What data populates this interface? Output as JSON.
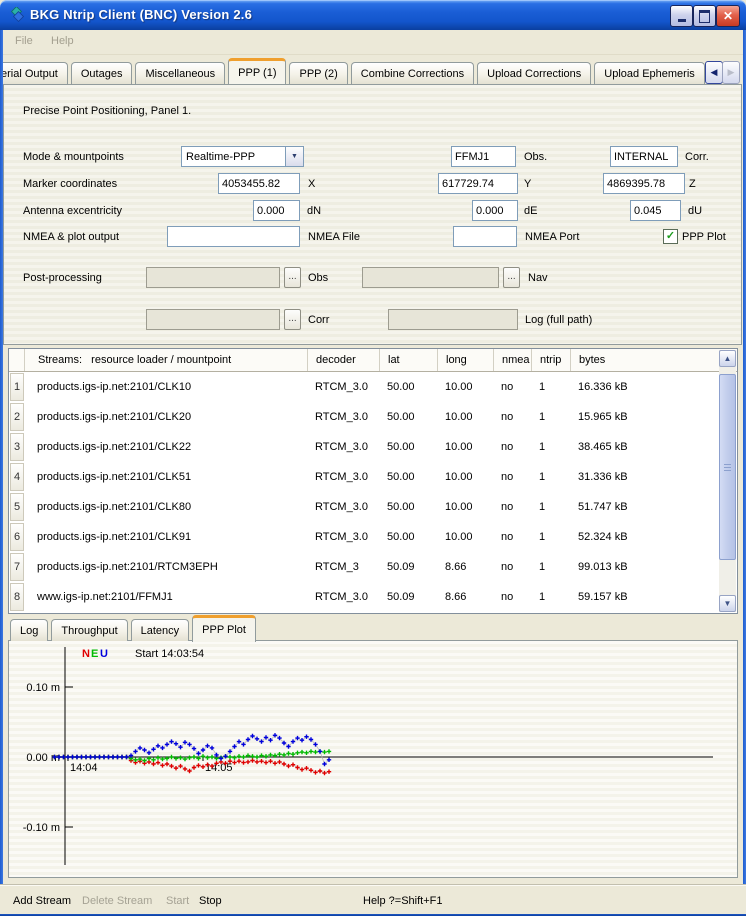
{
  "window": {
    "title": "BKG Ntrip Client (BNC) Version 2.6"
  },
  "menu": {
    "items": [
      "File",
      "Help"
    ]
  },
  "top_tabs": {
    "items": [
      "erial Output",
      "Outages",
      "Miscellaneous",
      "PPP (1)",
      "PPP (2)",
      "Combine Corrections",
      "Upload Corrections",
      "Upload Ephemeris"
    ],
    "active": "PPP (1)"
  },
  "tab_scroll": {
    "left_enabled": true,
    "right_enabled": false
  },
  "ppp_panel": {
    "heading": "Precise Point Positioning, Panel 1.",
    "mode_row": {
      "label": "Mode & mountpoints",
      "mode": "Realtime-PPP",
      "obs": "FFMJ1",
      "obs_label": "Obs.",
      "corr": "INTERNAL",
      "corr_label": "Corr."
    },
    "marker_row": {
      "label": "Marker coordinates",
      "x": "4053455.82",
      "x_label": "X",
      "y": "617729.74",
      "y_label": "Y",
      "z": "4869395.78",
      "z_label": "Z"
    },
    "antenna_row": {
      "label": "Antenna excentricity",
      "dn": "0.000",
      "dn_label": "dN",
      "de": "0.000",
      "de_label": "dE",
      "du": "0.045",
      "du_label": "dU"
    },
    "nmea_row": {
      "label": "NMEA & plot output",
      "file": "",
      "file_label": "NMEA File",
      "port": "",
      "port_label": "NMEA Port",
      "ppp_plot_label": "PPP Plot",
      "ppp_plot_checked": true
    },
    "post_row": {
      "label": "Post-processing",
      "browse": "...",
      "obs_label": "Obs",
      "nav_label": "Nav"
    },
    "log_row": {
      "browse": "...",
      "corr_label": "Corr",
      "log_label": "Log (full path)"
    }
  },
  "streams_table": {
    "headers": [
      "Streams:   resource loader / mountpoint",
      "decoder",
      "lat",
      "long",
      "nmea",
      "ntrip",
      "bytes"
    ],
    "rows": [
      {
        "num": "1",
        "mountpoint": "products.igs-ip.net:2101/CLK10",
        "decoder": "RTCM_3.0",
        "lat": "50.00",
        "long": "10.00",
        "nmea": "no",
        "ntrip": "1",
        "bytes": "16.336 kB"
      },
      {
        "num": "2",
        "mountpoint": "products.igs-ip.net:2101/CLK20",
        "decoder": "RTCM_3.0",
        "lat": "50.00",
        "long": "10.00",
        "nmea": "no",
        "ntrip": "1",
        "bytes": "15.965 kB"
      },
      {
        "num": "3",
        "mountpoint": "products.igs-ip.net:2101/CLK22",
        "decoder": "RTCM_3.0",
        "lat": "50.00",
        "long": "10.00",
        "nmea": "no",
        "ntrip": "1",
        "bytes": "38.465 kB"
      },
      {
        "num": "4",
        "mountpoint": "products.igs-ip.net:2101/CLK51",
        "decoder": "RTCM_3.0",
        "lat": "50.00",
        "long": "10.00",
        "nmea": "no",
        "ntrip": "1",
        "bytes": "31.336 kB"
      },
      {
        "num": "5",
        "mountpoint": "products.igs-ip.net:2101/CLK80",
        "decoder": "RTCM_3.0",
        "lat": "50.00",
        "long": "10.00",
        "nmea": "no",
        "ntrip": "1",
        "bytes": "51.747 kB"
      },
      {
        "num": "6",
        "mountpoint": "products.igs-ip.net:2101/CLK91",
        "decoder": "RTCM_3.0",
        "lat": "50.00",
        "long": "10.00",
        "nmea": "no",
        "ntrip": "1",
        "bytes": "52.324 kB"
      },
      {
        "num": "7",
        "mountpoint": "products.igs-ip.net:2101/RTCM3EPH",
        "decoder": "RTCM_3",
        "lat": "50.09",
        "long": "8.66",
        "nmea": "no",
        "ntrip": "1",
        "bytes": "99.013 kB"
      },
      {
        "num": "8",
        "mountpoint": "www.igs-ip.net:2101/FFMJ1",
        "decoder": "RTCM_3.0",
        "lat": "50.09",
        "long": "8.66",
        "nmea": "no",
        "ntrip": "1",
        "bytes": "59.157 kB"
      }
    ]
  },
  "bottom_tabs": {
    "items": [
      "Log",
      "Throughput",
      "Latency",
      "PPP Plot"
    ],
    "active": "PPP Plot"
  },
  "chart_data": {
    "type": "scatter",
    "annotation": "Start 14:03:54",
    "units": "m",
    "legend": [
      {
        "label": "N",
        "color": "#e00000"
      },
      {
        "label": "E",
        "color": "#00bb00"
      },
      {
        "label": "U",
        "color": "#0000dd"
      }
    ],
    "y_ticks": [
      {
        "value": 0.1,
        "label": "0.10 m"
      },
      {
        "value": 0.0,
        "label": "0.00 m"
      },
      {
        "value": -0.1,
        "label": "-0.10 m"
      }
    ],
    "x_ticks": [
      {
        "seconds": 0,
        "label": "14:04"
      },
      {
        "seconds": 60,
        "label": "14:05"
      }
    ],
    "ylim": [
      -0.17,
      0.17
    ],
    "x_start_seconds": -6,
    "x_step_seconds": 2,
    "series": [
      {
        "name": "N",
        "color": "#e00000",
        "values": [
          0,
          0,
          0,
          0,
          0,
          0,
          0,
          0,
          0,
          0,
          0,
          0,
          0,
          0,
          0,
          0,
          0,
          -0.005,
          -0.008,
          -0.006,
          -0.009,
          -0.007,
          -0.01,
          -0.008,
          -0.012,
          -0.01,
          -0.013,
          -0.016,
          -0.013,
          -0.017,
          -0.02,
          -0.015,
          -0.012,
          -0.014,
          -0.011,
          -0.013,
          -0.009,
          -0.007,
          -0.009,
          -0.006,
          -0.008,
          -0.006,
          -0.008,
          -0.007,
          -0.005,
          -0.007,
          -0.006,
          -0.008,
          -0.006,
          -0.009,
          -0.007,
          -0.01,
          -0.013,
          -0.011,
          -0.015,
          -0.018,
          -0.016,
          -0.019,
          -0.022,
          -0.02,
          -0.023,
          -0.021
        ]
      },
      {
        "name": "E",
        "color": "#00bb00",
        "values": [
          0,
          0,
          0,
          0,
          0,
          0,
          0,
          0,
          0,
          0,
          0,
          0,
          0,
          0,
          0,
          0,
          0,
          -0.002,
          -0.004,
          -0.003,
          -0.005,
          -0.002,
          -0.004,
          -0.001,
          -0.003,
          -0.002,
          0.0,
          -0.002,
          -0.001,
          -0.003,
          -0.001,
          0.0,
          -0.002,
          0.001,
          -0.001,
          0.0,
          -0.002,
          -0.001,
          0.001,
          0.0,
          -0.001,
          0.001,
          0.0,
          0.002,
          0.001,
          0.0,
          0.002,
          0.001,
          0.003,
          0.002,
          0.004,
          0.003,
          0.005,
          0.004,
          0.006,
          0.007,
          0.006,
          0.008,
          0.007,
          0.008,
          0.007,
          0.008
        ]
      },
      {
        "name": "U",
        "color": "#0000dd",
        "values": [
          0,
          0,
          0,
          0,
          0,
          0,
          0,
          0,
          0,
          0,
          0,
          0,
          0,
          0,
          0,
          0,
          0,
          0.002,
          0.008,
          0.013,
          0.01,
          0.006,
          0.011,
          0.016,
          0.013,
          0.018,
          0.022,
          0.019,
          0.014,
          0.021,
          0.018,
          0.012,
          0.005,
          0.01,
          0.016,
          0.013,
          0.003,
          -0.002,
          0.001,
          0.008,
          0.015,
          0.022,
          0.018,
          0.025,
          0.03,
          0.026,
          0.022,
          0.028,
          0.024,
          0.031,
          0.027,
          0.02,
          0.015,
          0.022,
          0.027,
          0.024,
          0.029,
          0.025,
          0.018,
          0.008,
          -0.01,
          -0.004
        ]
      }
    ]
  },
  "status_bar": {
    "add_stream": "Add Stream",
    "delete_stream": "Delete Stream",
    "start": "Start",
    "stop": "Stop",
    "help": "Help ?=Shift+F1",
    "enabled": {
      "add_stream": true,
      "delete_stream": false,
      "start": false,
      "stop": true
    }
  }
}
